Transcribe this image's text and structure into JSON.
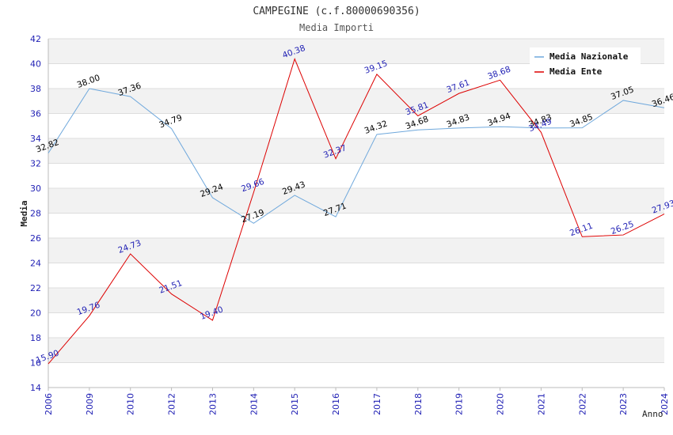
{
  "chart_data": {
    "type": "line",
    "title": "CAMPEGINE (c.f.80000690356)",
    "subtitle": "Media Importi",
    "xlabel": "Anno",
    "ylabel": "Media",
    "ylim": [
      14,
      42
    ],
    "ytick_step": 2,
    "grid": true,
    "legend_position": "top-right",
    "categories": [
      "2006",
      "2009",
      "2010",
      "2012",
      "2013",
      "2014",
      "2015",
      "2016",
      "2017",
      "2018",
      "2019",
      "2020",
      "2021",
      "2022",
      "2023",
      "2024"
    ],
    "series": [
      {
        "name": "Media Nazionale",
        "color": "#6fa8dc",
        "label_color": "#000000",
        "values": [
          32.82,
          38.0,
          37.36,
          34.79,
          29.24,
          27.19,
          29.43,
          27.71,
          34.32,
          34.68,
          34.83,
          34.94,
          34.83,
          34.85,
          37.05,
          36.46
        ],
        "labels": [
          "32.82",
          "38.00",
          "37.36",
          "34.79",
          "29.24",
          "27.19",
          "29.43",
          "27.71",
          "34.32",
          "34.68",
          "34.83",
          "34.94",
          "34.83",
          "34.85",
          "37.05",
          "36.46"
        ]
      },
      {
        "name": "Media Ente",
        "color": "#dd0000",
        "label_color": "#1f1fb4",
        "values": [
          15.9,
          19.76,
          24.73,
          21.51,
          19.4,
          29.66,
          40.38,
          32.37,
          39.15,
          35.81,
          37.61,
          38.68,
          34.49,
          26.11,
          26.25,
          27.93
        ],
        "labels": [
          "15.90",
          "19.76",
          "24.73",
          "21.51",
          "19.40",
          "29.66",
          "40.38",
          "32.37",
          "39.15",
          "35.81",
          "37.61",
          "38.68",
          "34.49",
          "26.11",
          "26.25",
          "27.93"
        ]
      }
    ]
  }
}
